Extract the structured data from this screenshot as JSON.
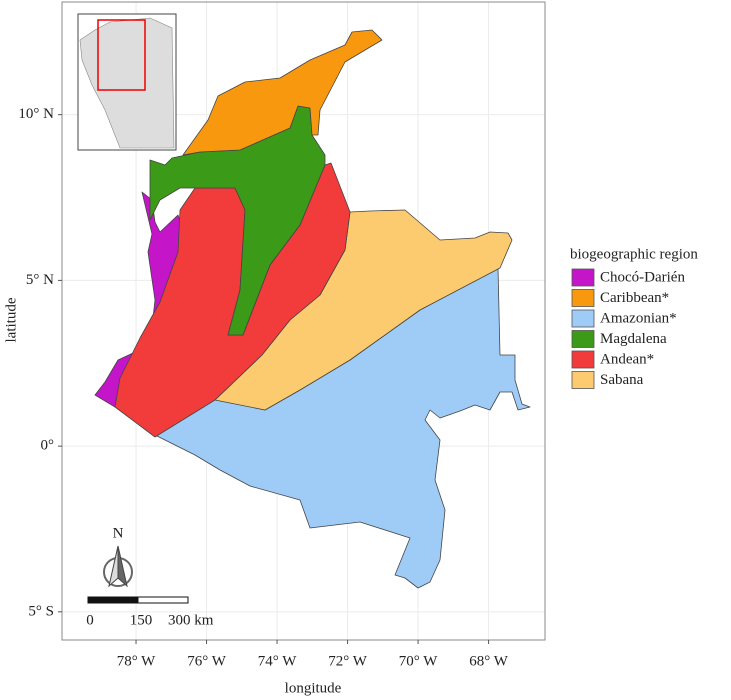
{
  "chart_data": {
    "type": "map",
    "x_label": "longitude",
    "y_label": "latitude",
    "xlim": [
      -80.1,
      -66.4
    ],
    "ylim": [
      -5.85,
      13.4
    ],
    "xticks": [
      {
        "value": -78,
        "label": "78° W"
      },
      {
        "value": -76,
        "label": "76° W"
      },
      {
        "value": -74,
        "label": "74° W"
      },
      {
        "value": -72,
        "label": "72° W"
      },
      {
        "value": -70,
        "label": "70° W"
      },
      {
        "value": -68,
        "label": "68° W"
      }
    ],
    "yticks": [
      {
        "value": 10,
        "label": "10° N"
      },
      {
        "value": 5,
        "label": "5° N"
      },
      {
        "value": 0,
        "label": "0°"
      },
      {
        "value": -5,
        "label": "5° S"
      }
    ],
    "grid": true,
    "legend": {
      "title": "biogeographic region",
      "position": "right"
    },
    "series": [
      {
        "name": "Chocó-Darién",
        "color": "#c415c9"
      },
      {
        "name": "Caribbean*",
        "color": "#f7980f"
      },
      {
        "name": "Amazonian*",
        "color": "#9fcbf7"
      },
      {
        "name": "Magdalena",
        "color": "#3b9a17"
      },
      {
        "name": "Andean*",
        "color": "#f23b3b"
      },
      {
        "name": "Sabana",
        "color": "#fccb6f"
      }
    ],
    "north_arrow": "N",
    "scale_bar": {
      "labels": [
        "0",
        "150",
        "300 km"
      ]
    }
  }
}
